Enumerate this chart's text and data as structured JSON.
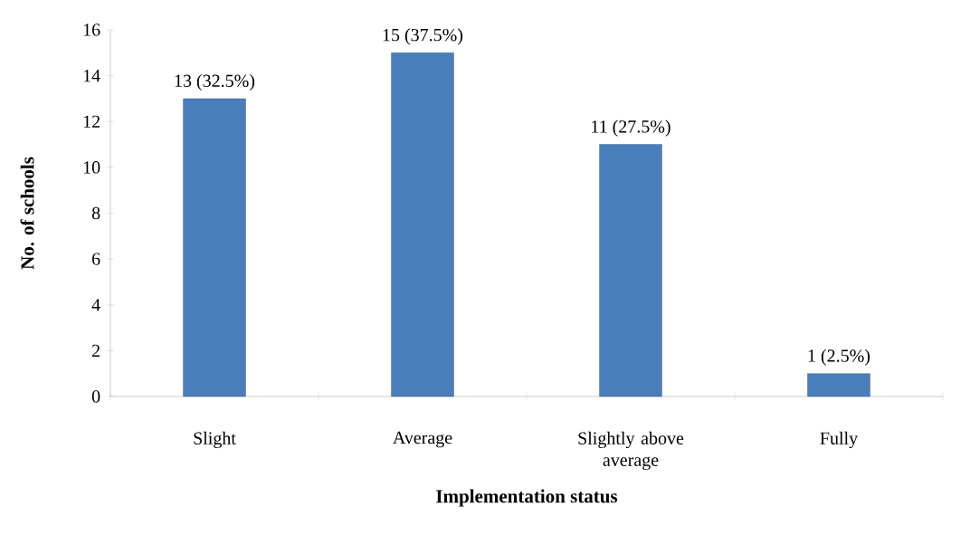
{
  "chart_data": {
    "type": "bar",
    "xlabel": "Implementation status",
    "ylabel": "No. of schools",
    "categories": [
      "Slight",
      "Average",
      "Slightly above average",
      "Fully"
    ],
    "values": [
      13,
      15,
      11,
      1
    ],
    "value_labels": [
      "13 (32.5%)",
      "15 (37.5%)",
      "11 (27.5%)",
      "1 (2.5%)"
    ],
    "color": "#4a7ebb",
    "ylim": [
      0,
      16
    ],
    "yticks": [
      0,
      2,
      4,
      6,
      8,
      10,
      12,
      14,
      16
    ]
  }
}
